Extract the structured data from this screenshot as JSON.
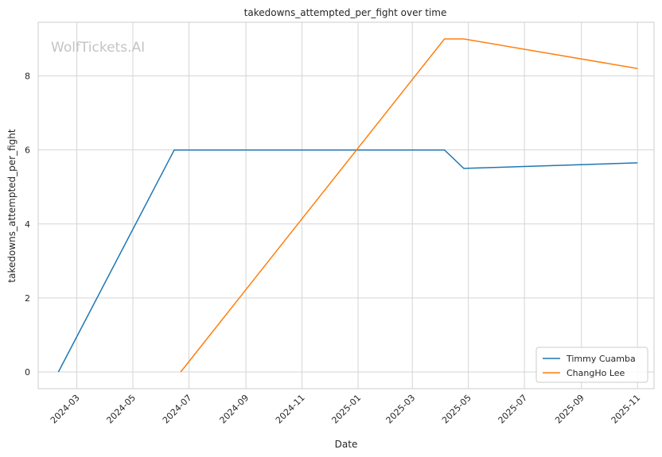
{
  "chart_data": {
    "type": "line",
    "title": "takedowns_attempted_per_fight over time",
    "xlabel": "Date",
    "ylabel": "takedowns_attempted_per_fight",
    "watermark": "WolfTickets.AI",
    "x_ticks": [
      "2024-03",
      "2024-05",
      "2024-07",
      "2024-09",
      "2024-11",
      "2025-01",
      "2025-03",
      "2025-05",
      "2025-07",
      "2025-09",
      "2025-11"
    ],
    "y_ticks": [
      0,
      2,
      4,
      6,
      8
    ],
    "xlim": [
      "2024-01-19",
      "2025-11-19"
    ],
    "ylim": [
      -0.45,
      9.45
    ],
    "grid": true,
    "legend_position": "bottom-right",
    "series": [
      {
        "name": "Timmy Cuamba",
        "color": "#1f77b4",
        "points": [
          {
            "date": "2024-02-10",
            "value": 0
          },
          {
            "date": "2024-06-15",
            "value": 6
          },
          {
            "date": "2025-04-05",
            "value": 6
          },
          {
            "date": "2025-04-26",
            "value": 5.5
          },
          {
            "date": "2025-11-01",
            "value": 5.65
          }
        ]
      },
      {
        "name": "ChangHo Lee",
        "color": "#ff7f0e",
        "points": [
          {
            "date": "2024-06-22",
            "value": 0
          },
          {
            "date": "2025-04-05",
            "value": 9
          },
          {
            "date": "2025-04-26",
            "value": 9
          },
          {
            "date": "2025-11-01",
            "value": 8.2
          }
        ]
      }
    ]
  }
}
